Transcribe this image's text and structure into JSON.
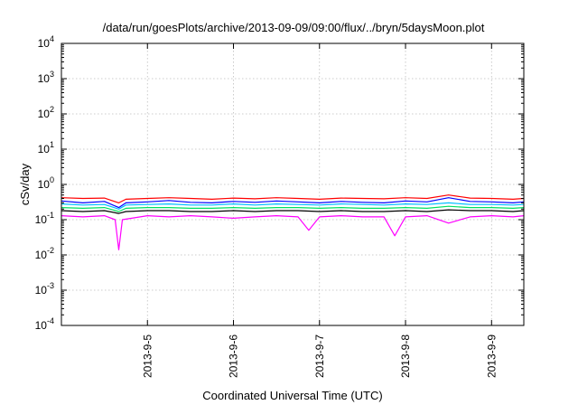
{
  "chart_data": {
    "type": "line",
    "title": "/data/run/goesPlots/archive/2013-09-09/09:00/flux/../bryn/5daysMoon.plot",
    "xlabel": "Coordinated Universal Time (UTC)",
    "ylabel": "cSv/day",
    "yscale": "log",
    "grid": true,
    "xlim": [
      "2013-09-04 00:00",
      "2013-09-09 09:00"
    ],
    "ylim": [
      0.0001,
      10000
    ],
    "x_ticks": [
      {
        "value": "2013-09-05 00:00",
        "label": "2013-9-5"
      },
      {
        "value": "2013-09-06 00:00",
        "label": "2013-9-6"
      },
      {
        "value": "2013-09-07 00:00",
        "label": "2013-9-7"
      },
      {
        "value": "2013-09-08 00:00",
        "label": "2013-9-8"
      },
      {
        "value": "2013-09-09 00:00",
        "label": "2013-9-9"
      }
    ],
    "y_ticks": [
      {
        "value": 0.0001,
        "base": "10",
        "exp": "-4"
      },
      {
        "value": 0.001,
        "base": "10",
        "exp": "-3"
      },
      {
        "value": 0.01,
        "base": "10",
        "exp": "-2"
      },
      {
        "value": 0.1,
        "base": "10",
        "exp": "-1"
      },
      {
        "value": 1,
        "base": "10",
        "exp": "0"
      },
      {
        "value": 10,
        "base": "10",
        "exp": "1"
      },
      {
        "value": 100,
        "base": "10",
        "exp": "2"
      },
      {
        "value": 1000,
        "base": "10",
        "exp": "3"
      },
      {
        "value": 10000,
        "base": "10",
        "exp": "4"
      }
    ],
    "series": [
      {
        "color": "#ff0000",
        "x": [
          "2013-09-04 00:00",
          "2013-09-04 06:00",
          "2013-09-04 12:00",
          "2013-09-04 16:00",
          "2013-09-04 18:00",
          "2013-09-05 00:00",
          "2013-09-05 06:00",
          "2013-09-05 12:00",
          "2013-09-05 18:00",
          "2013-09-06 00:00",
          "2013-09-06 06:00",
          "2013-09-06 12:00",
          "2013-09-06 18:00",
          "2013-09-07 00:00",
          "2013-09-07 06:00",
          "2013-09-07 12:00",
          "2013-09-07 18:00",
          "2013-09-08 00:00",
          "2013-09-08 06:00",
          "2013-09-08 12:00",
          "2013-09-08 18:00",
          "2013-09-09 00:00",
          "2013-09-09 06:00",
          "2013-09-09 09:00"
        ],
        "values": [
          0.42,
          0.4,
          0.41,
          0.3,
          0.38,
          0.4,
          0.42,
          0.4,
          0.38,
          0.41,
          0.39,
          0.42,
          0.4,
          0.38,
          0.41,
          0.4,
          0.39,
          0.42,
          0.4,
          0.5,
          0.41,
          0.4,
          0.38,
          0.4
        ]
      },
      {
        "color": "#0000ff",
        "x": [
          "2013-09-04 00:00",
          "2013-09-04 06:00",
          "2013-09-04 12:00",
          "2013-09-04 16:00",
          "2013-09-04 18:00",
          "2013-09-05 00:00",
          "2013-09-05 06:00",
          "2013-09-05 12:00",
          "2013-09-05 18:00",
          "2013-09-06 00:00",
          "2013-09-06 06:00",
          "2013-09-06 12:00",
          "2013-09-06 18:00",
          "2013-09-07 00:00",
          "2013-09-07 06:00",
          "2013-09-07 12:00",
          "2013-09-07 18:00",
          "2013-09-08 00:00",
          "2013-09-08 06:00",
          "2013-09-08 12:00",
          "2013-09-08 18:00",
          "2013-09-09 00:00",
          "2013-09-09 06:00",
          "2013-09-09 09:00"
        ],
        "values": [
          0.34,
          0.3,
          0.33,
          0.22,
          0.3,
          0.32,
          0.35,
          0.31,
          0.3,
          0.33,
          0.31,
          0.34,
          0.32,
          0.3,
          0.33,
          0.31,
          0.3,
          0.34,
          0.32,
          0.42,
          0.33,
          0.32,
          0.3,
          0.32
        ]
      },
      {
        "color": "#00bfff",
        "x": [
          "2013-09-04 00:00",
          "2013-09-04 06:00",
          "2013-09-04 12:00",
          "2013-09-04 16:00",
          "2013-09-04 18:00",
          "2013-09-05 00:00",
          "2013-09-05 06:00",
          "2013-09-05 12:00",
          "2013-09-05 18:00",
          "2013-09-06 00:00",
          "2013-09-06 06:00",
          "2013-09-06 12:00",
          "2013-09-06 18:00",
          "2013-09-07 00:00",
          "2013-09-07 06:00",
          "2013-09-07 12:00",
          "2013-09-07 18:00",
          "2013-09-08 00:00",
          "2013-09-08 06:00",
          "2013-09-08 12:00",
          "2013-09-08 18:00",
          "2013-09-09 00:00",
          "2013-09-09 06:00",
          "2013-09-09 09:00"
        ],
        "values": [
          0.28,
          0.26,
          0.27,
          0.2,
          0.26,
          0.27,
          0.28,
          0.26,
          0.26,
          0.28,
          0.26,
          0.28,
          0.27,
          0.26,
          0.28,
          0.27,
          0.26,
          0.28,
          0.27,
          0.3,
          0.27,
          0.27,
          0.26,
          0.27
        ]
      },
      {
        "color": "#00e060",
        "x": [
          "2013-09-04 00:00",
          "2013-09-04 06:00",
          "2013-09-04 12:00",
          "2013-09-04 16:00",
          "2013-09-04 18:00",
          "2013-09-05 00:00",
          "2013-09-05 06:00",
          "2013-09-05 12:00",
          "2013-09-05 18:00",
          "2013-09-06 00:00",
          "2013-09-06 06:00",
          "2013-09-06 12:00",
          "2013-09-06 18:00",
          "2013-09-07 00:00",
          "2013-09-07 06:00",
          "2013-09-07 12:00",
          "2013-09-07 18:00",
          "2013-09-08 00:00",
          "2013-09-08 06:00",
          "2013-09-08 12:00",
          "2013-09-08 18:00",
          "2013-09-09 00:00",
          "2013-09-09 06:00",
          "2013-09-09 09:00"
        ],
        "values": [
          0.22,
          0.21,
          0.22,
          0.17,
          0.21,
          0.22,
          0.22,
          0.21,
          0.21,
          0.22,
          0.21,
          0.22,
          0.22,
          0.21,
          0.22,
          0.21,
          0.21,
          0.22,
          0.21,
          0.24,
          0.22,
          0.22,
          0.21,
          0.22
        ]
      },
      {
        "color": "#000000",
        "x": [
          "2013-09-04 00:00",
          "2013-09-04 06:00",
          "2013-09-04 12:00",
          "2013-09-04 16:00",
          "2013-09-04 18:00",
          "2013-09-05 00:00",
          "2013-09-05 06:00",
          "2013-09-05 12:00",
          "2013-09-05 18:00",
          "2013-09-06 00:00",
          "2013-09-06 06:00",
          "2013-09-06 12:00",
          "2013-09-06 18:00",
          "2013-09-07 00:00",
          "2013-09-07 06:00",
          "2013-09-07 12:00",
          "2013-09-07 18:00",
          "2013-09-08 00:00",
          "2013-09-08 06:00",
          "2013-09-08 12:00",
          "2013-09-08 18:00",
          "2013-09-09 00:00",
          "2013-09-09 06:00",
          "2013-09-09 09:00"
        ],
        "values": [
          0.18,
          0.17,
          0.18,
          0.15,
          0.17,
          0.18,
          0.18,
          0.17,
          0.17,
          0.18,
          0.17,
          0.18,
          0.18,
          0.17,
          0.18,
          0.17,
          0.17,
          0.18,
          0.17,
          0.19,
          0.18,
          0.18,
          0.17,
          0.18
        ]
      },
      {
        "color": "#ff00ff",
        "x": [
          "2013-09-04 00:00",
          "2013-09-04 06:00",
          "2013-09-04 12:00",
          "2013-09-04 15:00",
          "2013-09-04 16:00",
          "2013-09-04 17:00",
          "2013-09-05 00:00",
          "2013-09-05 06:00",
          "2013-09-05 12:00",
          "2013-09-05 18:00",
          "2013-09-06 00:00",
          "2013-09-06 06:00",
          "2013-09-06 12:00",
          "2013-09-06 18:00",
          "2013-09-06 21:00",
          "2013-09-07 00:00",
          "2013-09-07 06:00",
          "2013-09-07 12:00",
          "2013-09-07 18:00",
          "2013-09-07 21:00",
          "2013-09-08 00:00",
          "2013-09-08 06:00",
          "2013-09-08 12:00",
          "2013-09-08 18:00",
          "2013-09-09 00:00",
          "2013-09-09 06:00",
          "2013-09-09 09:00"
        ],
        "values": [
          0.13,
          0.12,
          0.13,
          0.1,
          0.014,
          0.1,
          0.13,
          0.12,
          0.13,
          0.12,
          0.11,
          0.12,
          0.13,
          0.12,
          0.05,
          0.12,
          0.13,
          0.12,
          0.12,
          0.035,
          0.12,
          0.13,
          0.08,
          0.12,
          0.13,
          0.12,
          0.13
        ]
      }
    ]
  }
}
